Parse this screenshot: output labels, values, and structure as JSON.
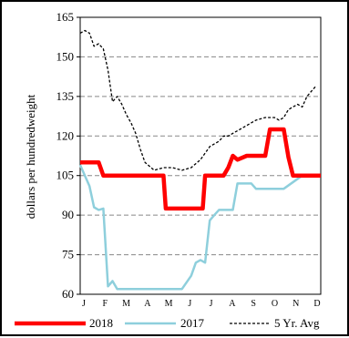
{
  "chart_data": {
    "type": "line",
    "title": "",
    "xlabel": "",
    "ylabel": "dollars per hundredweight",
    "ylim": [
      60,
      165
    ],
    "yticks": [
      60,
      75,
      90,
      105,
      120,
      135,
      150,
      165
    ],
    "ytick_labels": [
      "60",
      "75",
      "90",
      "105",
      "120",
      "135",
      "150",
      "165"
    ],
    "xlim": [
      0,
      52
    ],
    "months": [
      "J",
      "F",
      "M",
      "A",
      "M",
      "J",
      "J",
      "A",
      "S",
      "O",
      "N",
      "D"
    ],
    "grid": "horizontal dashed",
    "legend_position": "bottom",
    "series": [
      {
        "name": "2018",
        "color": "#ff0000",
        "style": "solid-thick",
        "x": [
          0,
          4,
          5,
          8,
          12,
          16,
          18,
          18.5,
          22,
          26.5,
          27,
          31,
          32,
          33,
          34,
          36,
          37,
          38,
          40,
          41,
          44,
          45,
          46,
          48,
          52
        ],
        "y": [
          110,
          110,
          105,
          105,
          105,
          105,
          105,
          92.5,
          92.5,
          92.5,
          105,
          105,
          108,
          112.5,
          111,
          112.5,
          112.5,
          112.5,
          112.5,
          122.5,
          122.5,
          112,
          105,
          105,
          105
        ]
      },
      {
        "name": "2017",
        "color": "#8ecfdc",
        "style": "solid",
        "x": [
          0,
          1,
          2,
          3,
          4,
          5,
          6,
          7,
          8,
          10,
          12,
          16,
          20,
          22,
          24,
          25,
          26,
          27,
          28,
          29,
          30,
          31,
          32,
          33,
          34,
          36,
          37,
          38,
          40,
          42,
          43,
          44,
          48,
          52
        ],
        "y": [
          109,
          105,
          101,
          93,
          92,
          92.5,
          63,
          65,
          62,
          62,
          62,
          62,
          62,
          62,
          67,
          72,
          73,
          72,
          88,
          90,
          92,
          92,
          92,
          92,
          102,
          102,
          102,
          100,
          100,
          100,
          100,
          100,
          105,
          105
        ]
      },
      {
        "name": "5 Yr. Avg",
        "color": "#000000",
        "style": "dashed",
        "x": [
          0,
          1,
          2,
          3,
          4,
          5,
          6,
          7,
          8,
          9,
          10,
          11,
          12,
          13,
          14,
          16,
          18,
          20,
          22,
          24,
          26,
          28,
          30,
          31,
          32,
          33,
          34,
          36,
          38,
          40,
          41,
          42,
          43,
          44,
          45,
          46,
          47,
          48,
          49,
          50,
          51
        ],
        "y": [
          159,
          160,
          159,
          154,
          155,
          153,
          145,
          133,
          135,
          132,
          128,
          125,
          121,
          115,
          110,
          107,
          108,
          108,
          107,
          108,
          111,
          116,
          118,
          120,
          120,
          121,
          122,
          124,
          126,
          127,
          127,
          127,
          126,
          127,
          130,
          131,
          132,
          131,
          135,
          137,
          139
        ]
      }
    ]
  },
  "legend": {
    "items": [
      "2018",
      "2017",
      "5 Yr. Avg"
    ]
  }
}
